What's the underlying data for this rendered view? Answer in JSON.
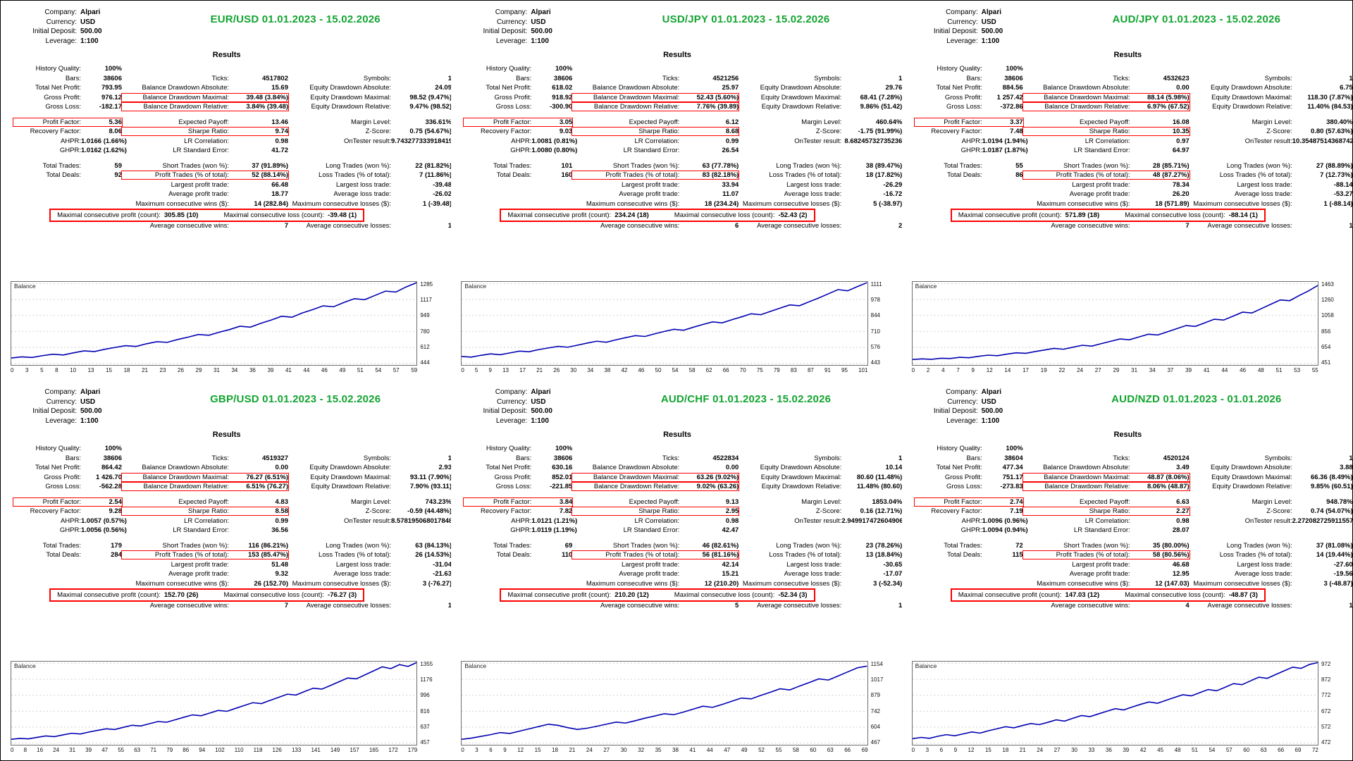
{
  "shared": {
    "results_label": "Results",
    "account_labels": [
      "Company:",
      "Currency:",
      "Initial Deposit:",
      "Leverage:"
    ],
    "colors": {
      "title_green": "#12a430",
      "highlight_red": "#fd0100",
      "curve_blue": "#0000b2",
      "grid_gray": "#d2d2d2"
    },
    "highlight_pairs": [
      [
        3,
        1
      ],
      [
        4,
        1
      ],
      [
        6,
        0
      ],
      [
        7,
        1
      ],
      [
        12,
        1
      ]
    ],
    "special_row": 16,
    "stat_labels": [
      [
        "History Quality:",
        "",
        ""
      ],
      [
        "Bars:",
        "Ticks:",
        "Symbols:"
      ],
      [
        "Total Net Profit:",
        "Balance Drawdown Absolute:",
        "Equity Drawdown Absolute:"
      ],
      [
        "Gross Profit:",
        "Balance Drawdown Maximal:",
        "Equity Drawdown Maximal:"
      ],
      [
        "Gross Loss:",
        "Balance Drawdown Relative:",
        "Equity Drawdown Relative:"
      ],
      [
        "",
        "",
        ""
      ],
      [
        "Profit Factor:",
        "Expected Payoff:",
        "Margin Level:"
      ],
      [
        "Recovery Factor:",
        "Sharpe Ratio:",
        "Z-Score:"
      ],
      [
        "AHPR:",
        "LR Correlation:",
        "OnTester result:"
      ],
      [
        "GHPR:",
        "LR Standard Error:",
        ""
      ],
      [
        "",
        "",
        ""
      ],
      [
        "Total Trades:",
        "Short Trades (won %):",
        "Long Trades (won %):"
      ],
      [
        "Total Deals:",
        "Profit Trades (% of total):",
        "Loss Trades (% of total):"
      ],
      [
        "",
        "Largest profit trade:",
        "Largest loss trade:"
      ],
      [
        "",
        "Average profit trade:",
        "Average loss trade:"
      ],
      [
        "",
        "Maximum consecutive wins ($):",
        "Maximum consecutive losses ($):"
      ],
      [
        "Maximal consecutive profit (count):",
        "Maximal consecutive loss (count):",
        ""
      ],
      [
        "",
        "Average consecutive wins:",
        "Average consecutive losses:"
      ]
    ]
  },
  "panels": [
    {
      "title": "EUR/USD 01.01.2023 - 15.02.2026",
      "account_values": [
        "Alpari",
        "USD",
        "500.00",
        "1:100"
      ],
      "stat_values": [
        [
          "100%",
          "",
          ""
        ],
        [
          "38606",
          "4517802",
          "1"
        ],
        [
          "793.95",
          "15.69",
          "24.09"
        ],
        [
          "976.12",
          "39.48 (3.84%)",
          "98.52 (9.47%)"
        ],
        [
          "-182.17",
          "3.84% (39.48)",
          "9.47% (98.52)"
        ],
        [
          "",
          "",
          ""
        ],
        [
          "5.36",
          "13.46",
          "336.61%"
        ],
        [
          "8.06",
          "9.74",
          "0.75 (54.67%)"
        ],
        [
          "1.0166 (1.66%)",
          "0.98",
          "9.743277333918419"
        ],
        [
          "1.0162 (1.62%)",
          "41.72",
          ""
        ],
        [
          "",
          "",
          ""
        ],
        [
          "59",
          "37 (91.89%)",
          "22 (81.82%)"
        ],
        [
          "92",
          "52 (88.14%)",
          "7 (11.86%)"
        ],
        [
          "",
          "66.48",
          "-39.48"
        ],
        [
          "",
          "18.77",
          "-26.02"
        ],
        [
          "",
          "14 (282.84)",
          "1 (-39.48)"
        ],
        [
          "305.85 (10)",
          "-39.48 (1)",
          ""
        ],
        [
          "",
          "7",
          "1"
        ]
      ],
      "chart_data": {
        "type": "line",
        "series_name": "Balance",
        "y_ticks": [
          1285,
          1117,
          949,
          780,
          612,
          444
        ],
        "x_ticks": [
          0,
          3,
          5,
          8,
          10,
          13,
          15,
          18,
          21,
          23,
          26,
          29,
          31,
          34,
          36,
          39,
          41,
          44,
          46,
          49,
          51,
          54,
          57,
          59
        ],
        "values": [
          500,
          512,
          506,
          525,
          540,
          532,
          555,
          575,
          568,
          592,
          612,
          630,
          622,
          650,
          672,
          665,
          695,
          720,
          748,
          740,
          772,
          800,
          835,
          825,
          865,
          900,
          940,
          930,
          975,
          1010,
          1050,
          1040,
          1085,
          1125,
          1115,
          1160,
          1205,
          1195,
          1250,
          1294
        ]
      }
    },
    {
      "title": "USD/JPY 01.01.2023 - 15.02.2026",
      "account_values": [
        "Alpari",
        "USD",
        "500.00",
        "1:100"
      ],
      "stat_values": [
        [
          "100%",
          "",
          ""
        ],
        [
          "38606",
          "4521256",
          "1"
        ],
        [
          "618.02",
          "25.97",
          "29.76"
        ],
        [
          "918.92",
          "52.43 (5.60%)",
          "68.41 (7.28%)"
        ],
        [
          "-300.90",
          "7.76% (39.89)",
          "9.86% (51.42)"
        ],
        [
          "",
          "",
          ""
        ],
        [
          "3.05",
          "6.12",
          "460.64%"
        ],
        [
          "9.03",
          "8.68",
          "-1.75 (91.99%)"
        ],
        [
          "1.0081 (0.81%)",
          "0.99",
          "8.68245732735236"
        ],
        [
          "1.0080 (0.80%)",
          "26.54",
          ""
        ],
        [
          "",
          "",
          ""
        ],
        [
          "101",
          "63 (77.78%)",
          "38 (89.47%)"
        ],
        [
          "160",
          "83 (82.18%)",
          "18 (17.82%)"
        ],
        [
          "",
          "33.94",
          "-26.29"
        ],
        [
          "",
          "11.07",
          "-16.72"
        ],
        [
          "",
          "18 (234.24)",
          "5 (-38.97)"
        ],
        [
          "234.24 (18)",
          "-52.43 (2)",
          ""
        ],
        [
          "",
          "6",
          "2"
        ]
      ],
      "chart_data": {
        "type": "line",
        "series_name": "Balance",
        "y_ticks": [
          1111,
          978,
          844,
          710,
          576,
          443
        ],
        "x_ticks": [
          0,
          5,
          9,
          13,
          17,
          21,
          26,
          30,
          34,
          38,
          42,
          46,
          50,
          54,
          58,
          62,
          66,
          70,
          75,
          79,
          83,
          87,
          91,
          95,
          101
        ],
        "values": [
          500,
          495,
          510,
          522,
          515,
          530,
          545,
          540,
          558,
          572,
          585,
          578,
          595,
          612,
          628,
          620,
          640,
          658,
          675,
          668,
          690,
          710,
          728,
          720,
          745,
          768,
          790,
          782,
          808,
          832,
          858,
          850,
          878,
          905,
          932,
          925,
          958,
          990,
          1025,
          1060,
          1050,
          1085,
          1118
        ]
      }
    },
    {
      "title": "AUD/JPY 01.01.2023 - 15.02.2026",
      "account_values": [
        "Alpari",
        "USD",
        "500.00",
        "1:100"
      ],
      "stat_values": [
        [
          "100%",
          "",
          ""
        ],
        [
          "38606",
          "4532623",
          "1"
        ],
        [
          "884.56",
          "0.00",
          "6.75"
        ],
        [
          "1 257.42",
          "88.14 (5.98%)",
          "118.30 (7.87%)"
        ],
        [
          "-372.86",
          "6.97% (67.52)",
          "11.40% (84.53)"
        ],
        [
          "",
          "",
          ""
        ],
        [
          "3.37",
          "16.08",
          "380.40%"
        ],
        [
          "7.48",
          "10.35",
          "0.80 (57.63%)"
        ],
        [
          "1.0194 (1.94%)",
          "0.97",
          "10.35487514368742"
        ],
        [
          "1.0187 (1.87%)",
          "64.97",
          ""
        ],
        [
          "",
          "",
          ""
        ],
        [
          "55",
          "28 (85.71%)",
          "27 (88.89%)"
        ],
        [
          "86",
          "48 (87.27%)",
          "7 (12.73%)"
        ],
        [
          "",
          "78.34",
          "-88.14"
        ],
        [
          "",
          "26.20",
          "-53.27"
        ],
        [
          "",
          "18 (571.89)",
          "1 (-88.14)"
        ],
        [
          "571.89 (18)",
          "-88.14 (1)",
          ""
        ],
        [
          "",
          "7",
          "1"
        ]
      ],
      "chart_data": {
        "type": "line",
        "series_name": "Balance",
        "y_ticks": [
          1463,
          1260,
          1058,
          856,
          654,
          451
        ],
        "x_ticks": [
          0,
          2,
          4,
          7,
          9,
          12,
          14,
          17,
          19,
          22,
          24,
          27,
          29,
          31,
          34,
          37,
          39,
          41,
          44,
          46,
          48,
          51,
          53,
          55
        ],
        "values": [
          500,
          508,
          502,
          515,
          512,
          528,
          522,
          540,
          555,
          548,
          568,
          585,
          578,
          600,
          620,
          640,
          630,
          655,
          680,
          670,
          700,
          730,
          760,
          750,
          785,
          820,
          810,
          850,
          890,
          930,
          920,
          965,
          1010,
          1000,
          1050,
          1100,
          1090,
          1145,
          1200,
          1255,
          1245,
          1310,
          1370,
          1440
        ]
      }
    },
    {
      "title": "GBP/USD 01.01.2023 - 15.02.2026",
      "account_values": [
        "Alpari",
        "USD",
        "500.00",
        "1:100"
      ],
      "stat_values": [
        [
          "100%",
          "",
          ""
        ],
        [
          "38606",
          "4519327",
          "1"
        ],
        [
          "864.42",
          "0.00",
          "2.93"
        ],
        [
          "1 426.70",
          "76.27 (6.51%)",
          "93.11 (7.90%)"
        ],
        [
          "-562.28",
          "6.51% (76.27)",
          "7.90% (93.11)"
        ],
        [
          "",
          "",
          ""
        ],
        [
          "2.54",
          "4.83",
          "743.23%"
        ],
        [
          "9.28",
          "8.58",
          "-0.59 (44.48%)"
        ],
        [
          "1.0057 (0.57%)",
          "0.99",
          "8.578195068017848"
        ],
        [
          "1.0056 (0.56%)",
          "36.56",
          ""
        ],
        [
          "",
          "",
          ""
        ],
        [
          "179",
          "116 (86.21%)",
          "63 (84.13%)"
        ],
        [
          "284",
          "153 (85.47%)",
          "26 (14.53%)"
        ],
        [
          "",
          "51.48",
          "-31.04"
        ],
        [
          "",
          "9.32",
          "-21.63"
        ],
        [
          "",
          "26 (152.70)",
          "3 (-76.27)"
        ],
        [
          "152.70 (26)",
          "-76.27 (3)",
          ""
        ],
        [
          "",
          "7",
          "1"
        ]
      ],
      "chart_data": {
        "type": "line",
        "series_name": "Balance",
        "y_ticks": [
          1355,
          1176,
          996,
          816,
          637,
          457
        ],
        "x_ticks": [
          0,
          8,
          16,
          24,
          31,
          39,
          47,
          55,
          63,
          71,
          79,
          86,
          94,
          102,
          110,
          118,
          126,
          133,
          141,
          149,
          157,
          165,
          172,
          179
        ],
        "values": [
          500,
          510,
          505,
          522,
          538,
          530,
          550,
          568,
          560,
          582,
          600,
          618,
          610,
          635,
          658,
          650,
          675,
          700,
          692,
          720,
          748,
          775,
          765,
          795,
          825,
          815,
          848,
          880,
          912,
          902,
          938,
          972,
          1008,
          998,
          1038,
          1075,
          1065,
          1105,
          1148,
          1190,
          1180,
          1225,
          1270,
          1315,
          1295,
          1340,
          1320,
          1364
        ]
      }
    },
    {
      "title": "AUD/CHF 01.01.2023 - 15.02.2026",
      "account_values": [
        "Alpari",
        "USD",
        "500.00",
        "1:100"
      ],
      "stat_values": [
        [
          "100%",
          "",
          ""
        ],
        [
          "38606",
          "4522834",
          "1"
        ],
        [
          "630.16",
          "0.00",
          "10.14"
        ],
        [
          "852.01",
          "63.26 (9.02%)",
          "80.60 (11.48%)"
        ],
        [
          "-221.85",
          "9.02% (63.26)",
          "11.48% (80.60)"
        ],
        [
          "",
          "",
          ""
        ],
        [
          "3.84",
          "9.13",
          "1853.04%"
        ],
        [
          "7.82",
          "2.95",
          "0.16 (12.71%)"
        ],
        [
          "1.0121 (1.21%)",
          "0.98",
          "2.949917472604906"
        ],
        [
          "1.0119 (1.19%)",
          "42.47",
          ""
        ],
        [
          "",
          "",
          ""
        ],
        [
          "69",
          "46 (82.61%)",
          "23 (78.26%)"
        ],
        [
          "110",
          "56 (81.16%)",
          "13 (18.84%)"
        ],
        [
          "",
          "42.14",
          "-30.65"
        ],
        [
          "",
          "15.21",
          "-17.07"
        ],
        [
          "",
          "12 (210.20)",
          "3 (-52.34)"
        ],
        [
          "210.20 (12)",
          "-52.34 (3)",
          ""
        ],
        [
          "",
          "5",
          "1"
        ]
      ],
      "chart_data": {
        "type": "line",
        "series_name": "Balance",
        "y_ticks": [
          1154,
          1017,
          879,
          742,
          604,
          467
        ],
        "x_ticks": [
          0,
          3,
          6,
          9,
          12,
          15,
          18,
          21,
          24,
          27,
          30,
          32,
          35,
          38,
          41,
          44,
          47,
          49,
          52,
          55,
          58,
          60,
          63,
          66,
          69
        ],
        "values": [
          500,
          510,
          525,
          540,
          558,
          550,
          570,
          590,
          610,
          630,
          620,
          600,
          585,
          595,
          612,
          630,
          648,
          640,
          660,
          682,
          700,
          720,
          712,
          735,
          760,
          785,
          775,
          800,
          828,
          855,
          848,
          878,
          905,
          935,
          925,
          958,
          988,
          1020,
          1010,
          1045,
          1080,
          1115,
          1130
        ]
      }
    },
    {
      "title": "AUD/NZD 01.01.2023 - 01.01.2026",
      "account_values": [
        "Alpari",
        "USD",
        "500.00",
        "1:100"
      ],
      "stat_values": [
        [
          "100%",
          "",
          ""
        ],
        [
          "38604",
          "4520124",
          "1"
        ],
        [
          "477.34",
          "3.49",
          "3.88"
        ],
        [
          "751.17",
          "48.87 (8.06%)",
          "66.36 (8.49%)"
        ],
        [
          "-273.83",
          "8.06% (48.87)",
          "9.85% (60.51)"
        ],
        [
          "",
          "",
          ""
        ],
        [
          "2.74",
          "6.63",
          "948.78%"
        ],
        [
          "7.19",
          "2.27",
          "0.74 (54.07%)"
        ],
        [
          "1.0096 (0.96%)",
          "0.98",
          "2.272082725911557"
        ],
        [
          "1.0094 (0.94%)",
          "28.07",
          ""
        ],
        [
          "",
          "",
          ""
        ],
        [
          "72",
          "35 (80.00%)",
          "37 (81.08%)"
        ],
        [
          "115",
          "58 (80.56%)",
          "14 (19.44%)"
        ],
        [
          "",
          "46.68",
          "-27.60"
        ],
        [
          "",
          "12.95",
          "-19.56"
        ],
        [
          "",
          "12 (147.03)",
          "3 (-48.87)"
        ],
        [
          "147.03 (12)",
          "-48.87 (3)",
          ""
        ],
        [
          "",
          "4",
          "1"
        ]
      ],
      "chart_data": {
        "type": "line",
        "series_name": "Balance",
        "y_ticks": [
          972,
          872,
          772,
          672,
          572,
          472
        ],
        "x_ticks": [
          0,
          3,
          6,
          9,
          12,
          15,
          18,
          21,
          24,
          27,
          30,
          33,
          36,
          39,
          42,
          45,
          48,
          51,
          54,
          57,
          60,
          63,
          66,
          69,
          72
        ],
        "values": [
          500,
          508,
          502,
          515,
          525,
          518,
          530,
          542,
          535,
          550,
          562,
          575,
          568,
          582,
          595,
          588,
          602,
          618,
          610,
          628,
          645,
          638,
          655,
          672,
          688,
          680,
          698,
          715,
          730,
          722,
          740,
          758,
          775,
          768,
          788,
          808,
          800,
          822,
          845,
          838,
          862,
          885,
          878,
          902,
          925,
          948,
          940,
          965,
          977
        ]
      }
    }
  ]
}
